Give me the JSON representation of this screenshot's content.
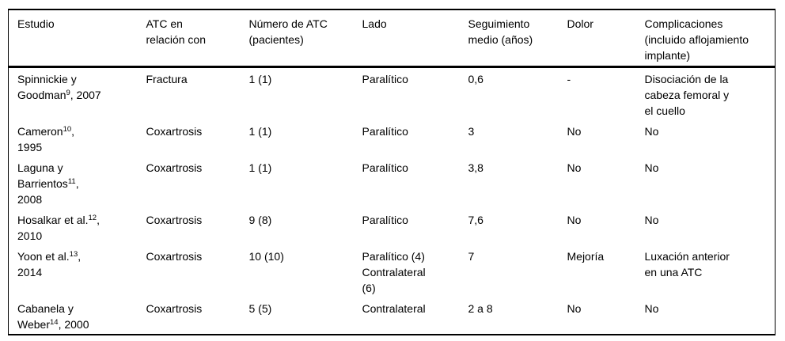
{
  "page": {
    "background_color": "#ffffff",
    "text_color": "#000000",
    "border_color": "#000000"
  },
  "table": {
    "columns": [
      {
        "key": "estudio",
        "label": "Estudio"
      },
      {
        "key": "atc_relacion",
        "label": "ATC en\nrelación con"
      },
      {
        "key": "numero_atc",
        "label": "Número de ATC\n(pacientes)"
      },
      {
        "key": "lado",
        "label": "Lado"
      },
      {
        "key": "seguimiento",
        "label": "Seguimiento\nmedio (años)"
      },
      {
        "key": "dolor",
        "label": "Dolor"
      },
      {
        "key": "complicaciones",
        "label": "Complicaciones\n(incluido aflojamiento\nimplante)"
      }
    ],
    "rows": [
      {
        "estudio": "Spinnickie y\nGoodman^9^, 2007",
        "atc_relacion": "Fractura",
        "numero_atc": "1 (1)",
        "lado": "Paralítico",
        "seguimiento": "0,6",
        "dolor": "-",
        "complicaciones": "Disociación de la\ncabeza femoral y\nel cuello"
      },
      {
        "estudio": "Cameron^10^,\n1995",
        "atc_relacion": "Coxartrosis",
        "numero_atc": "1 (1)",
        "lado": "Paralítico",
        "seguimiento": "3",
        "dolor": "No",
        "complicaciones": "No"
      },
      {
        "estudio": "Laguna y\nBarrientos^11^,\n2008",
        "atc_relacion": "Coxartrosis",
        "numero_atc": "1 (1)",
        "lado": "Paralítico",
        "seguimiento": "3,8",
        "dolor": "No",
        "complicaciones": "No"
      },
      {
        "estudio": "Hosalkar et al.^12^,\n2010",
        "atc_relacion": "Coxartrosis",
        "numero_atc": "9 (8)",
        "lado": "Paralítico",
        "seguimiento": "7,6",
        "dolor": "No",
        "complicaciones": "No"
      },
      {
        "estudio": "Yoon et al.^13^,\n2014",
        "atc_relacion": "Coxartrosis",
        "numero_atc": "10 (10)",
        "lado": "Paralítico (4)\nContralateral\n(6)",
        "seguimiento": "7",
        "dolor": "Mejoría",
        "complicaciones": "Luxación anterior\nen una ATC"
      },
      {
        "estudio": "Cabanela y\nWeber^14^, 2000",
        "atc_relacion": "Coxartrosis",
        "numero_atc": "5 (5)",
        "lado": "Contralateral",
        "seguimiento": "2 a 8",
        "dolor": "No",
        "complicaciones": "No"
      }
    ]
  }
}
